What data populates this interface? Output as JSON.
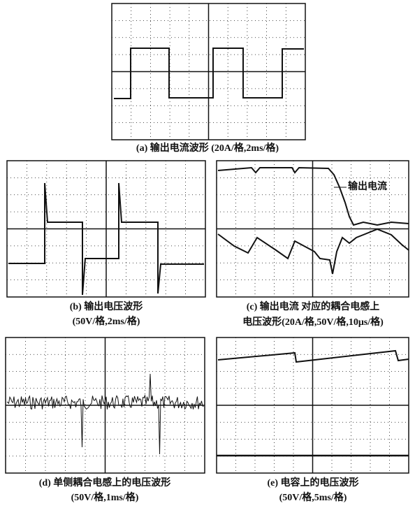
{
  "panels": [
    {
      "caption": [
        "(a) 输出电流波形 (20A/格,2ms/格)"
      ]
    },
    {
      "caption": [
        "(b) 输出电压波形",
        "(50V/格,2ms/格)"
      ]
    },
    {
      "caption": [
        "(c) 输出电流 对应的耦合电感上",
        "电压波形(20A/格,50V/格,10μs/格)"
      ],
      "annotation": "输出电流"
    },
    {
      "caption": [
        "(d) 单侧耦合电感上的电压波形",
        "(50V/格,1ms/格)"
      ]
    },
    {
      "caption": [
        "(e) 电容上的电压波形",
        "(50V/格,5ms/格)"
      ]
    }
  ]
}
